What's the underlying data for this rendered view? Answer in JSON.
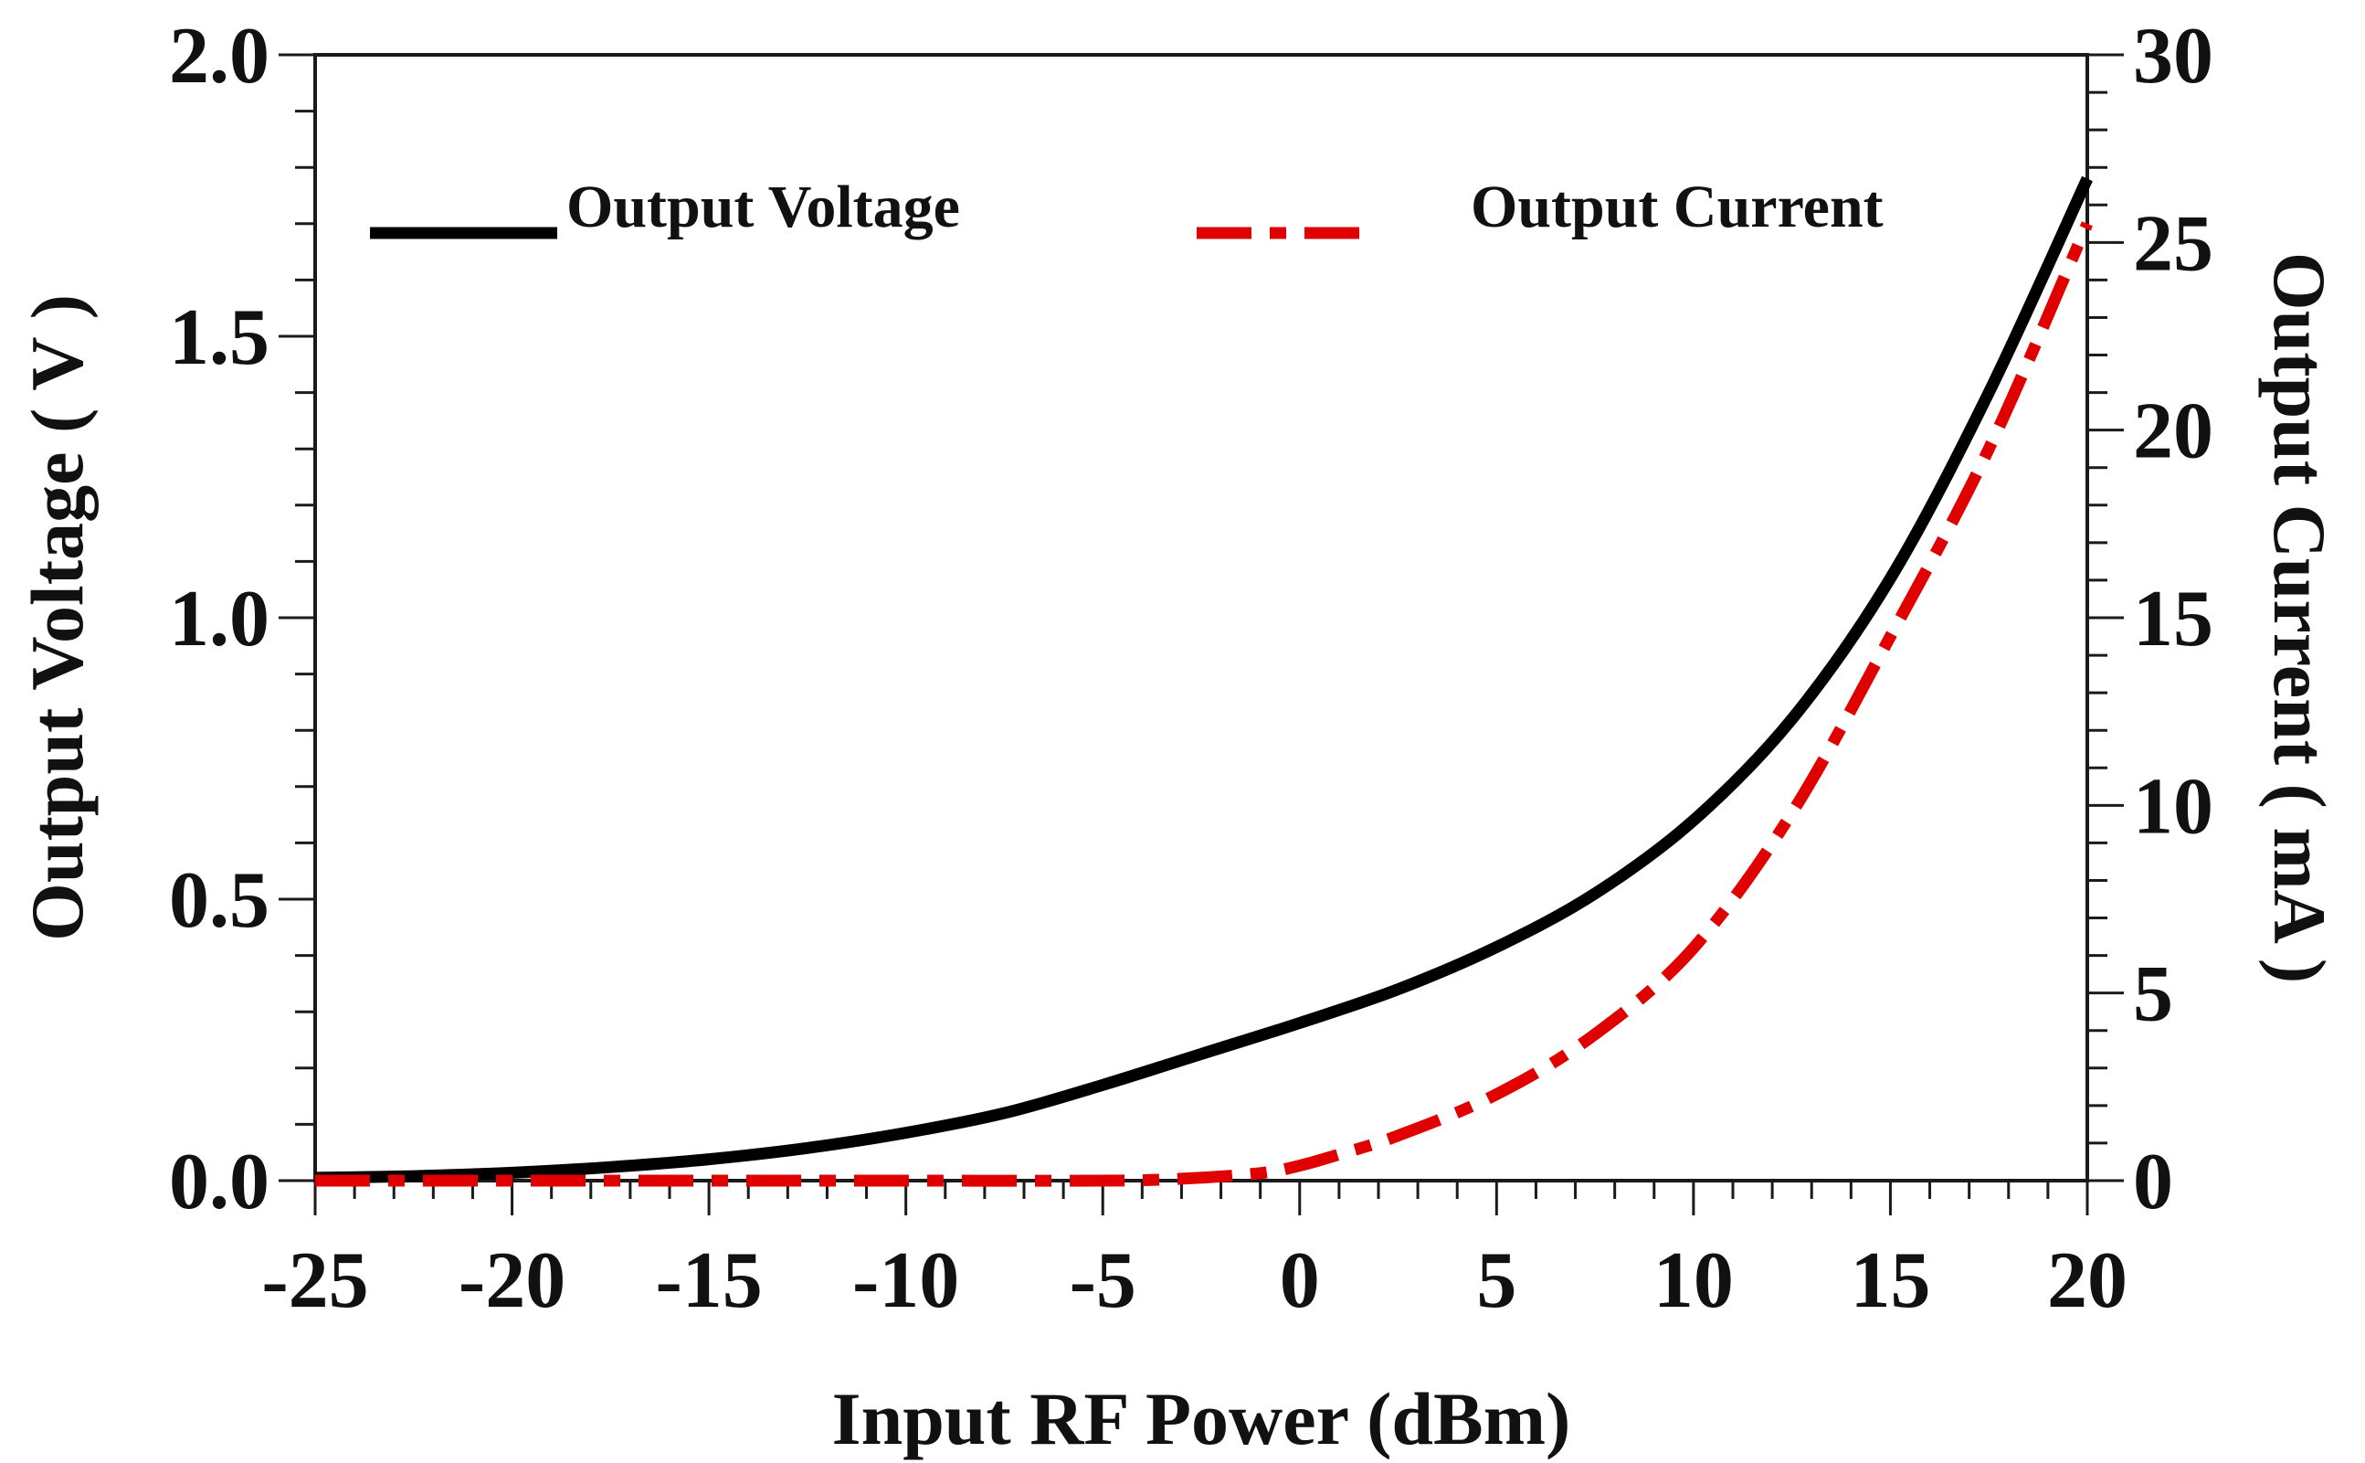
{
  "chart_data": {
    "type": "line",
    "xlabel": "Input RF Power (dBm)",
    "ylabel": "Output Voltage ( V )",
    "y2label": "Output Current ( mA )",
    "xlim": [
      -25,
      20
    ],
    "ylim": [
      0,
      2.0
    ],
    "y2lim": [
      0,
      30
    ],
    "x_ticks": [
      -25,
      -20,
      -15,
      -10,
      -5,
      0,
      5,
      10,
      15,
      20
    ],
    "x_tick_labels": [
      "-25",
      "-20",
      "-15",
      "-10",
      "-5",
      "0",
      "5",
      "10",
      "15",
      "20"
    ],
    "y_ticks": [
      0.0,
      0.5,
      1.0,
      1.5,
      2.0
    ],
    "y_tick_labels": [
      "0.0",
      "0.5",
      "1.0",
      "1.5",
      "2.0"
    ],
    "y2_ticks": [
      0,
      5,
      10,
      15,
      20,
      25,
      30
    ],
    "y2_tick_labels": [
      "0",
      "5",
      "10",
      "15",
      "20",
      "25",
      "30"
    ],
    "grid": false,
    "legend_position": "top",
    "series": [
      {
        "name": "Output Voltage",
        "axis": "left",
        "color": "#000000",
        "style": "solid",
        "x": [
          -25,
          -22.5,
          -20,
          -17.5,
          -15,
          -12.5,
          -10,
          -7.5,
          -5,
          -2.5,
          0,
          2.5,
          5,
          7.5,
          10,
          12.5,
          15,
          17.5,
          20
        ],
        "y": [
          0.005,
          0.008,
          0.014,
          0.024,
          0.038,
          0.058,
          0.085,
          0.12,
          0.17,
          0.225,
          0.28,
          0.34,
          0.415,
          0.51,
          0.64,
          0.82,
          1.07,
          1.4,
          1.78
        ]
      },
      {
        "name": "Output Current",
        "axis": "right",
        "color": "#e00000",
        "style": "dash-dot",
        "x": [
          -25,
          -20,
          -15,
          -10,
          -5,
          -3,
          -1,
          0,
          1,
          2.5,
          5,
          7.5,
          10,
          12.5,
          15,
          17.5,
          20
        ],
        "y": [
          0,
          0,
          0,
          0,
          0,
          0.05,
          0.2,
          0.4,
          0.7,
          1.2,
          2.3,
          3.9,
          6.2,
          9.8,
          14.5,
          19.5,
          25.5
        ]
      }
    ]
  },
  "colors": {
    "axis": "#1a1a1a",
    "voltage": "#000000",
    "current": "#e00000"
  }
}
